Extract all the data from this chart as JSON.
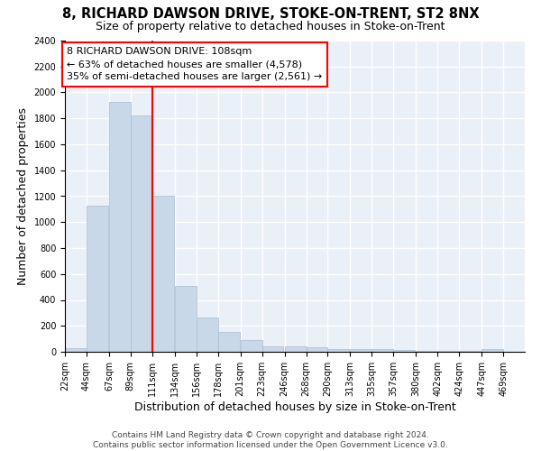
{
  "title": "8, RICHARD DAWSON DRIVE, STOKE-ON-TRENT, ST2 8NX",
  "subtitle": "Size of property relative to detached houses in Stoke-on-Trent",
  "xlabel": "Distribution of detached houses by size in Stoke-on-Trent",
  "ylabel": "Number of detached properties",
  "bar_left_edges": [
    22,
    44,
    67,
    89,
    111,
    134,
    156,
    178,
    201,
    223,
    246,
    268,
    290,
    313,
    335,
    357,
    380,
    402,
    424,
    447
  ],
  "bar_heights": [
    30,
    1130,
    1930,
    1820,
    1200,
    510,
    265,
    150,
    90,
    45,
    40,
    35,
    20,
    20,
    20,
    15,
    10,
    10,
    5,
    20
  ],
  "bin_width": 22,
  "bar_color": "#c8d8e8",
  "bar_edge_color": "#aabccc",
  "marker_x": 111,
  "marker_color": "red",
  "annotation_text": "8 RICHARD DAWSON DRIVE: 108sqm\n← 63% of detached houses are smaller (4,578)\n35% of semi-detached houses are larger (2,561) →",
  "annotation_box_color": "white",
  "annotation_box_edge": "red",
  "ylim": [
    0,
    2400
  ],
  "yticks": [
    0,
    200,
    400,
    600,
    800,
    1000,
    1200,
    1400,
    1600,
    1800,
    2000,
    2200,
    2400
  ],
  "xtick_labels": [
    "22sqm",
    "44sqm",
    "67sqm",
    "89sqm",
    "111sqm",
    "134sqm",
    "156sqm",
    "178sqm",
    "201sqm",
    "223sqm",
    "246sqm",
    "268sqm",
    "290sqm",
    "313sqm",
    "335sqm",
    "357sqm",
    "380sqm",
    "402sqm",
    "424sqm",
    "447sqm",
    "469sqm"
  ],
  "xtick_positions": [
    22,
    44,
    67,
    89,
    111,
    134,
    156,
    178,
    201,
    223,
    246,
    268,
    290,
    313,
    335,
    357,
    380,
    402,
    424,
    447,
    469
  ],
  "bg_color": "#eaf0f8",
  "footnote": "Contains HM Land Registry data © Crown copyright and database right 2024.\nContains public sector information licensed under the Open Government Licence v3.0.",
  "grid_color": "white",
  "title_fontsize": 10.5,
  "subtitle_fontsize": 9,
  "annotation_fontsize": 8,
  "footnote_fontsize": 6.5,
  "ylabel_fontsize": 9,
  "xlabel_fontsize": 9,
  "tick_fontsize": 7
}
